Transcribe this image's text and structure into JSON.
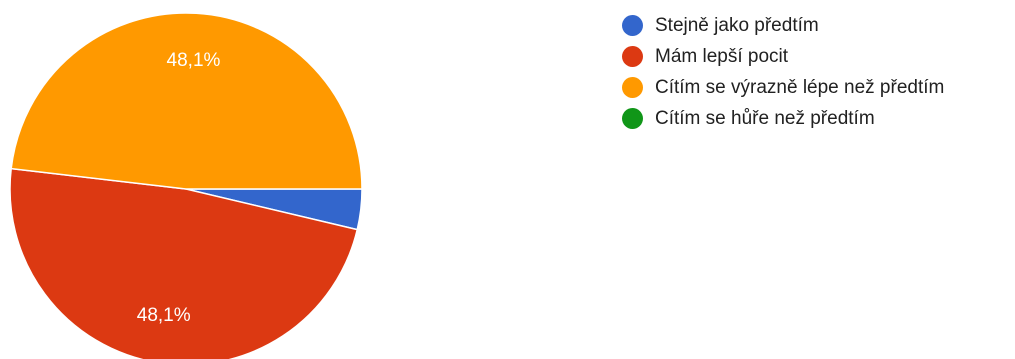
{
  "chart_data": {
    "type": "pie",
    "slices": [
      {
        "label": "Stejně jako předtím",
        "value": 3.7,
        "color": "#3366cc",
        "data_label": ""
      },
      {
        "label": "Mám lepší pocit",
        "value": 48.1,
        "color": "#dc3912",
        "data_label": "48,1%"
      },
      {
        "label": "Cítím se výrazně lépe než předtím",
        "value": 48.1,
        "color": "#ff9900",
        "data_label": "48,1%"
      },
      {
        "label": "Cítím se hůře než předtím",
        "value": 0,
        "color": "#109618",
        "data_label": ""
      }
    ],
    "start_angle_deg": 0,
    "direction": "clockwise",
    "legend_position": "right"
  }
}
